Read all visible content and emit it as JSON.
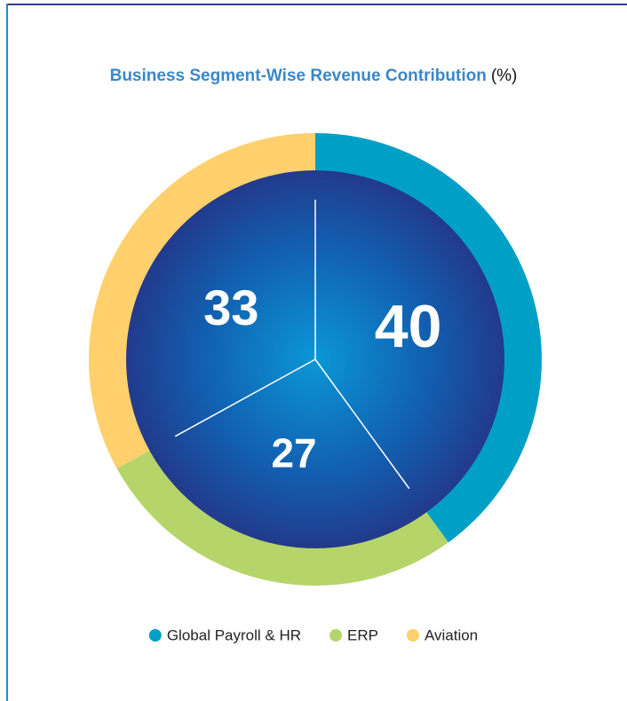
{
  "chart_data": {
    "type": "pie",
    "title": "Business Segment-Wise Revenue Contribution",
    "title_unit": "(%)",
    "categories": [
      "Global Payroll & HR",
      "ERP",
      "Aviation"
    ],
    "values": [
      40,
      27,
      33
    ],
    "colors": [
      "#00a0c6",
      "#b5d56a",
      "#ffd06b"
    ],
    "legend": "bottom"
  }
}
